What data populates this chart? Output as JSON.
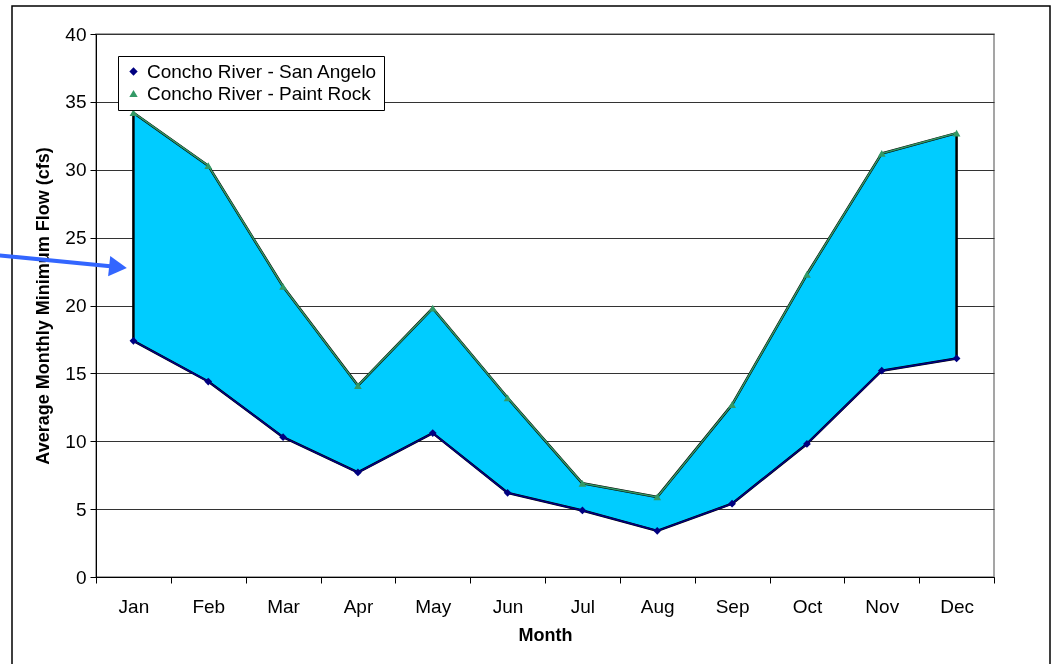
{
  "chart_data": {
    "type": "line",
    "xlabel": "Month",
    "ylabel": "Average Monthly Minimum Flow (cfs)",
    "categories": [
      "Jan",
      "Feb",
      "Mar",
      "Apr",
      "May",
      "Jun",
      "Jul",
      "Aug",
      "Sep",
      "Oct",
      "Nov",
      "Dec"
    ],
    "series": [
      {
        "type": "area",
        "color": "#00ccff",
        "values": [
          null,
          null,
          null,
          null,
          null,
          null,
          null,
          null,
          null,
          null,
          null,
          null
        ],
        "lower": [
          17.4,
          14.4,
          10.3,
          7.7,
          10.6,
          6.2,
          4.9,
          3.4,
          5.4,
          9.8,
          15.2,
          16.1
        ],
        "upper": [
          34.2,
          30.3,
          21.4,
          14.1,
          19.8,
          13.2,
          6.9,
          5.9,
          12.7,
          22.3,
          31.2,
          32.7
        ]
      },
      {
        "name": "Concho River - San Angelo",
        "color": "#000080",
        "marker": "diamond",
        "values": [
          17.4,
          14.4,
          10.3,
          7.7,
          10.6,
          6.2,
          4.9,
          3.4,
          5.4,
          9.8,
          15.2,
          16.1
        ]
      },
      {
        "name": "Concho River - Paint Rock",
        "color": "#339966",
        "marker": "triangle",
        "values": [
          34.2,
          30.3,
          21.4,
          14.1,
          19.8,
          13.2,
          6.9,
          5.9,
          12.7,
          22.3,
          31.2,
          32.7
        ]
      }
    ],
    "ylim": [
      0,
      40
    ],
    "yticks": [
      0,
      5,
      10,
      15,
      20,
      25,
      30,
      35,
      40
    ],
    "grid": "y",
    "legend": "top left"
  }
}
